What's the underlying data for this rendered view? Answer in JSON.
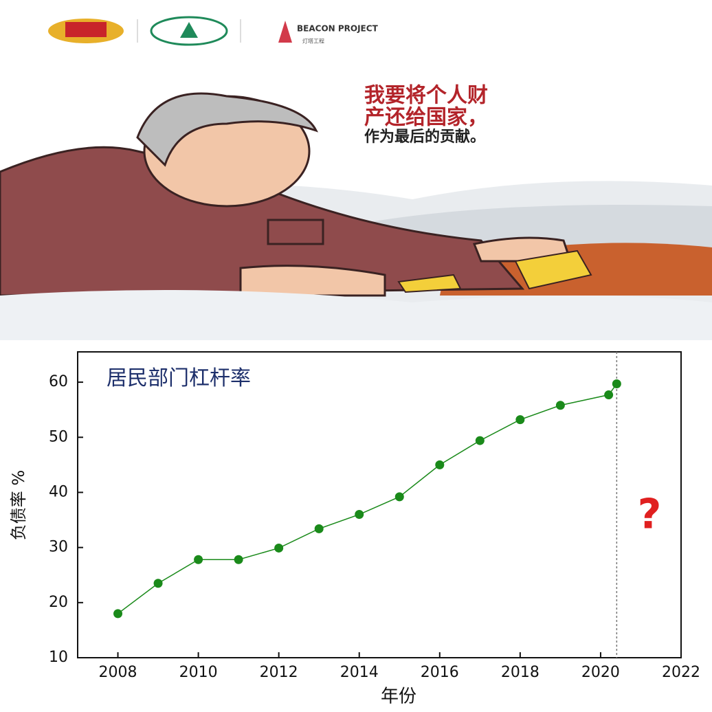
{
  "header": {
    "logo_title": "BEACON PROJECT",
    "logo_subtitle": "灯塔工程"
  },
  "poster": {
    "lines": [
      "我要将个人财",
      "产还给国家，",
      "作为最后的贡献。"
    ]
  },
  "chart_data": {
    "type": "line",
    "title": "居民部门杠杆率",
    "xlabel": "年份",
    "ylabel": "负债率 %",
    "x": [
      2008,
      2009,
      2010,
      2011,
      2012,
      2013,
      2014,
      2015,
      2016,
      2017,
      2018,
      2019,
      2020.2,
      2020.4
    ],
    "series": [
      {
        "name": "居民部门杠杆率",
        "color": "#1a8a1a",
        "values": [
          18,
          23.5,
          27.8,
          27.8,
          29.9,
          33.4,
          36,
          39.2,
          45,
          49.4,
          53.2,
          55.8,
          57.7,
          59.7
        ]
      }
    ],
    "xlim": [
      2007,
      2022
    ],
    "ylim": [
      10,
      65.5
    ],
    "xticks": [
      2008,
      2010,
      2012,
      2014,
      2016,
      2018,
      2020,
      2022
    ],
    "yticks": [
      10,
      20,
      30,
      40,
      50,
      60
    ],
    "vline": 2020.4,
    "annotation": "?"
  }
}
